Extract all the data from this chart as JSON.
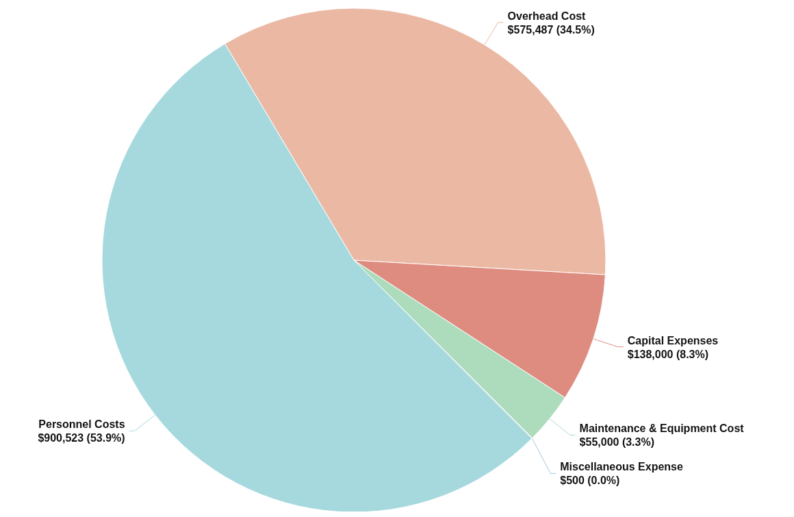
{
  "chart_data": {
    "type": "pie",
    "categories": [
      "Overhead Cost",
      "Capital Expenses",
      "Maintenance & Equipment Cost",
      "Miscellaneous Expense",
      "Personnel Costs"
    ],
    "values": [
      575487,
      138000,
      55000,
      500,
      900523
    ],
    "value_labels": [
      "$575,487 (34.5%)",
      "$138,000 (8.3%)",
      "$55,000 (3.3%)",
      "$500 (0.0%)",
      "$900,523 (53.9%)"
    ],
    "colors": [
      "#ebb8a3",
      "#de8c80",
      "#addcbd",
      "#9fc6dd",
      "#a6d9de"
    ],
    "legend": false
  }
}
